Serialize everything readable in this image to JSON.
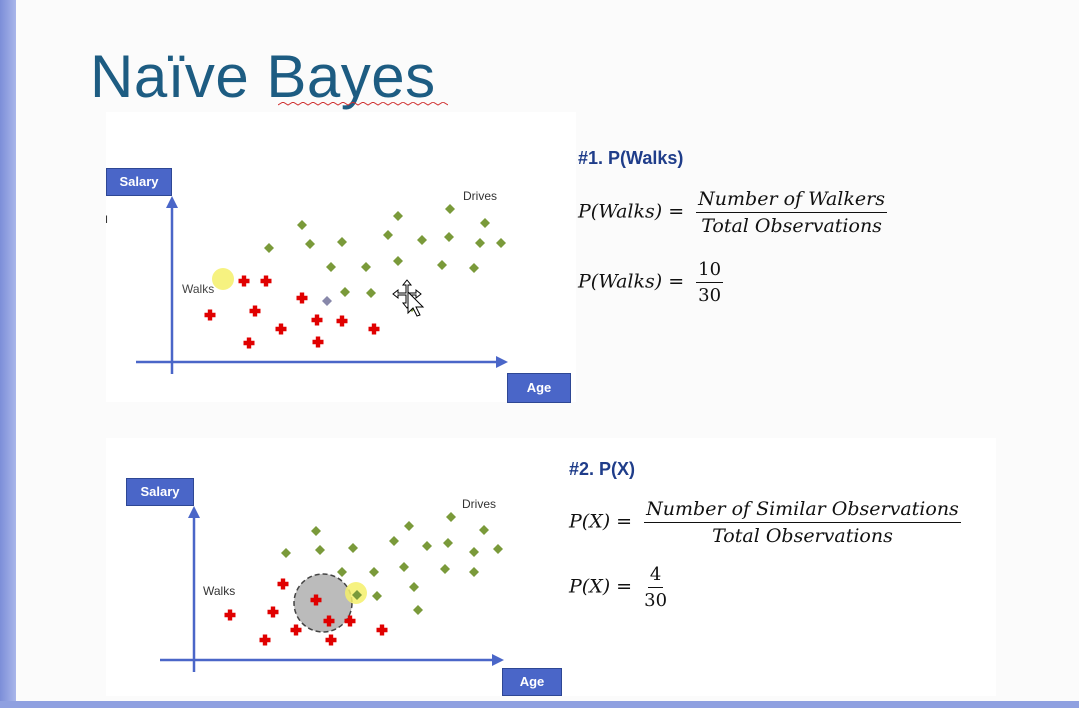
{
  "slide": {
    "title": "Naïve Bayes"
  },
  "top_chart": {
    "y_axis_label": "Salary",
    "x_axis_label": "Age",
    "drives_label": "Drives",
    "walks_label": "Walks",
    "stray_label": "I"
  },
  "bottom_chart": {
    "y_axis_label": "Salary",
    "x_axis_label": "Age",
    "drives_label": "Drives",
    "walks_label": "Walks"
  },
  "step1": {
    "heading": "#1. P(Walks)",
    "lhs": "P(Walks) =",
    "numerator": "Number of Walkers",
    "denominator": "Total Observations",
    "lhs2": "P(Walks) =",
    "num2": "10",
    "den2": "30"
  },
  "step2": {
    "heading": "#2. P(X)",
    "lhs": "P(X) =",
    "numerator": "Number of Similar Observations",
    "denominator": "Total Observations",
    "lhs2": "P(X) =",
    "num2": "4",
    "den2": "30"
  },
  "colors": {
    "walks": "#e00000",
    "drives": "#7a9a3a",
    "axis": "#4a66c8",
    "title": "#1d5c82",
    "highlight": "#f4f06a"
  }
}
